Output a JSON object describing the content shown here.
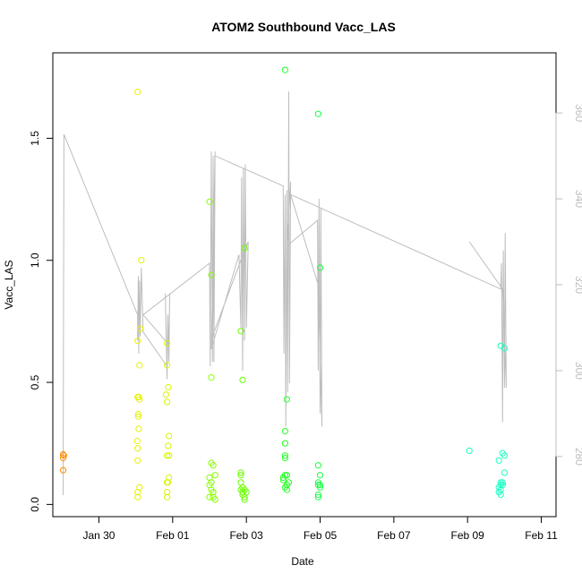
{
  "chart_data": {
    "type": "scatter",
    "title": "ATOM2 Southbound Vacc_LAS",
    "xlabel": "Date",
    "ylabel": "Vacc_LAS",
    "x_ticks": [
      "Jan 30",
      "Feb 01",
      "Feb 03",
      "Feb 05",
      "Feb 07",
      "Feb 09",
      "Feb 11"
    ],
    "y_ticks": [
      0.0,
      0.5,
      1.0,
      1.5
    ],
    "y_tick_labels": [
      "0.0",
      "0.5",
      "1.0",
      "1.5"
    ],
    "y2_ticks": [
      280,
      300,
      320,
      340,
      360
    ],
    "ylim": [
      -0.05,
      1.85
    ],
    "y2lim": [
      266,
      374
    ],
    "xlim_days": [
      28.75,
      42.4
    ],
    "points_series": [
      {
        "color": "#FF8C00",
        "points": [
          [
            29.03,
            0.205
          ],
          [
            29.03,
            0.19
          ],
          [
            29.03,
            0.14
          ],
          [
            29.05,
            0.2
          ]
        ]
      },
      {
        "color": "#E6F000",
        "points": [
          [
            31.05,
            1.69
          ],
          [
            31.05,
            0.67
          ],
          [
            31.1,
            0.57
          ],
          [
            31.05,
            0.44
          ],
          [
            31.07,
            0.37
          ],
          [
            31.05,
            0.18
          ],
          [
            31.1,
            0.07
          ],
          [
            31.05,
            0.05
          ],
          [
            31.05,
            0.03
          ],
          [
            31.12,
            0.72
          ],
          [
            31.08,
            0.44
          ],
          [
            31.1,
            0.43
          ],
          [
            31.04,
            0.26
          ],
          [
            31.08,
            0.31
          ],
          [
            31.15,
            1.0
          ],
          [
            31.05,
            0.23
          ],
          [
            31.07,
            0.36
          ]
        ]
      },
      {
        "color": "#D8F500",
        "points": [
          [
            31.82,
            0.45
          ],
          [
            31.85,
            0.66
          ],
          [
            31.85,
            0.57
          ],
          [
            31.85,
            0.42
          ],
          [
            31.85,
            0.2
          ],
          [
            31.85,
            0.09
          ],
          [
            31.85,
            0.03
          ],
          [
            31.88,
            0.48
          ],
          [
            31.9,
            0.28
          ],
          [
            31.88,
            0.24
          ],
          [
            31.9,
            0.2
          ],
          [
            31.87,
            0.09
          ],
          [
            31.85,
            0.05
          ],
          [
            31.9,
            0.11
          ]
        ]
      },
      {
        "color": "#88FF00",
        "points": [
          [
            33.0,
            1.24
          ],
          [
            33.05,
            0.94
          ],
          [
            33.05,
            0.52
          ],
          [
            33.05,
            0.17
          ],
          [
            33.1,
            0.16
          ],
          [
            33.0,
            0.11
          ],
          [
            33.05,
            0.09
          ],
          [
            33.0,
            0.08
          ],
          [
            33.05,
            0.06
          ],
          [
            33.1,
            0.05
          ],
          [
            33.0,
            0.03
          ],
          [
            33.1,
            0.03
          ],
          [
            33.15,
            0.12
          ],
          [
            33.15,
            0.02
          ]
        ]
      },
      {
        "color": "#6AFF00",
        "points": [
          [
            33.85,
            0.71
          ],
          [
            33.9,
            0.51
          ],
          [
            33.95,
            1.05
          ],
          [
            33.85,
            0.13
          ],
          [
            33.85,
            0.12
          ],
          [
            33.85,
            0.09
          ],
          [
            33.9,
            0.07
          ],
          [
            33.95,
            0.06
          ],
          [
            33.9,
            0.05
          ],
          [
            33.9,
            0.04
          ],
          [
            33.95,
            0.03
          ],
          [
            33.95,
            0.02
          ],
          [
            33.85,
            0.06
          ],
          [
            34.0,
            0.05
          ]
        ]
      },
      {
        "color": "#22FF22",
        "points": [
          [
            35.05,
            1.78
          ],
          [
            35.1,
            0.43
          ],
          [
            35.05,
            0.3
          ],
          [
            35.05,
            0.25
          ],
          [
            35.05,
            0.2
          ],
          [
            35.05,
            0.19
          ],
          [
            35.05,
            0.12
          ],
          [
            35.0,
            0.1
          ],
          [
            35.1,
            0.08
          ],
          [
            35.05,
            0.07
          ],
          [
            35.1,
            0.06
          ],
          [
            35.15,
            0.09
          ],
          [
            35.0,
            0.11
          ],
          [
            35.1,
            0.12
          ]
        ]
      },
      {
        "color": "#1AFF44",
        "points": [
          [
            35.95,
            1.6
          ],
          [
            36.0,
            0.97
          ],
          [
            35.95,
            0.16
          ],
          [
            36.0,
            0.12
          ],
          [
            35.95,
            0.09
          ],
          [
            35.95,
            0.08
          ],
          [
            36.0,
            0.07
          ],
          [
            35.95,
            0.04
          ],
          [
            35.95,
            0.03
          ],
          [
            36.0,
            0.08
          ]
        ]
      },
      {
        "color": "#1AFFC0",
        "points": [
          [
            40.05,
            0.22
          ],
          [
            40.9,
            0.65
          ],
          [
            41.0,
            0.64
          ],
          [
            40.95,
            0.21
          ],
          [
            41.0,
            0.2
          ],
          [
            40.85,
            0.18
          ],
          [
            41.0,
            0.13
          ],
          [
            40.9,
            0.09
          ],
          [
            40.95,
            0.09
          ],
          [
            40.95,
            0.08
          ],
          [
            40.9,
            0.08
          ],
          [
            40.85,
            0.07
          ],
          [
            40.9,
            0.06
          ],
          [
            40.85,
            0.05
          ],
          [
            40.9,
            0.04
          ]
        ]
      }
    ],
    "line_series": {
      "color": "#bdbdbd",
      "axis": "right",
      "points": [
        [
          29.03,
          271
        ],
        [
          29.05,
          355
        ],
        [
          31.05,
          313
        ],
        [
          31.05,
          307
        ],
        [
          31.07,
          322
        ],
        [
          31.08,
          304
        ],
        [
          31.1,
          321
        ],
        [
          31.12,
          308
        ],
        [
          31.15,
          324
        ],
        [
          31.2,
          309
        ],
        [
          31.85,
          301
        ],
        [
          31.8,
          318
        ],
        [
          31.85,
          298
        ],
        [
          31.87,
          313
        ],
        [
          31.9,
          302
        ],
        [
          31.92,
          318
        ],
        [
          31.9,
          306
        ],
        [
          31.2,
          313
        ],
        [
          33.0,
          325
        ],
        [
          33.02,
          301
        ],
        [
          33.05,
          351
        ],
        [
          33.08,
          302
        ],
        [
          33.1,
          350
        ],
        [
          33.12,
          302
        ],
        [
          33.15,
          351
        ],
        [
          33.05,
          305
        ],
        [
          33.8,
          327
        ],
        [
          33.85,
          310
        ],
        [
          33.87,
          345
        ],
        [
          33.9,
          300
        ],
        [
          33.92,
          347
        ],
        [
          33.95,
          307
        ],
        [
          33.97,
          348
        ],
        [
          34.0,
          310
        ],
        [
          34.05,
          330
        ],
        [
          33.95,
          328
        ],
        [
          33.08,
          308
        ],
        [
          33.15,
          350
        ],
        [
          35.0,
          343
        ],
        [
          35.02,
          304
        ],
        [
          35.05,
          341
        ],
        [
          35.07,
          287
        ],
        [
          35.1,
          342
        ],
        [
          35.12,
          295
        ],
        [
          35.15,
          365
        ],
        [
          35.17,
          297
        ],
        [
          35.2,
          344
        ],
        [
          35.1,
          329
        ],
        [
          35.93,
          335
        ],
        [
          35.95,
          300
        ],
        [
          35.97,
          340
        ],
        [
          36.0,
          290
        ],
        [
          36.02,
          338
        ],
        [
          36.05,
          287
        ],
        [
          35.95,
          320
        ],
        [
          35.2,
          341
        ],
        [
          40.9,
          319
        ],
        [
          40.92,
          325
        ],
        [
          40.95,
          288
        ],
        [
          40.97,
          328
        ],
        [
          41.0,
          296
        ],
        [
          41.02,
          332
        ],
        [
          41.05,
          296
        ],
        [
          40.95,
          319
        ],
        [
          40.05,
          330
        ]
      ]
    }
  }
}
